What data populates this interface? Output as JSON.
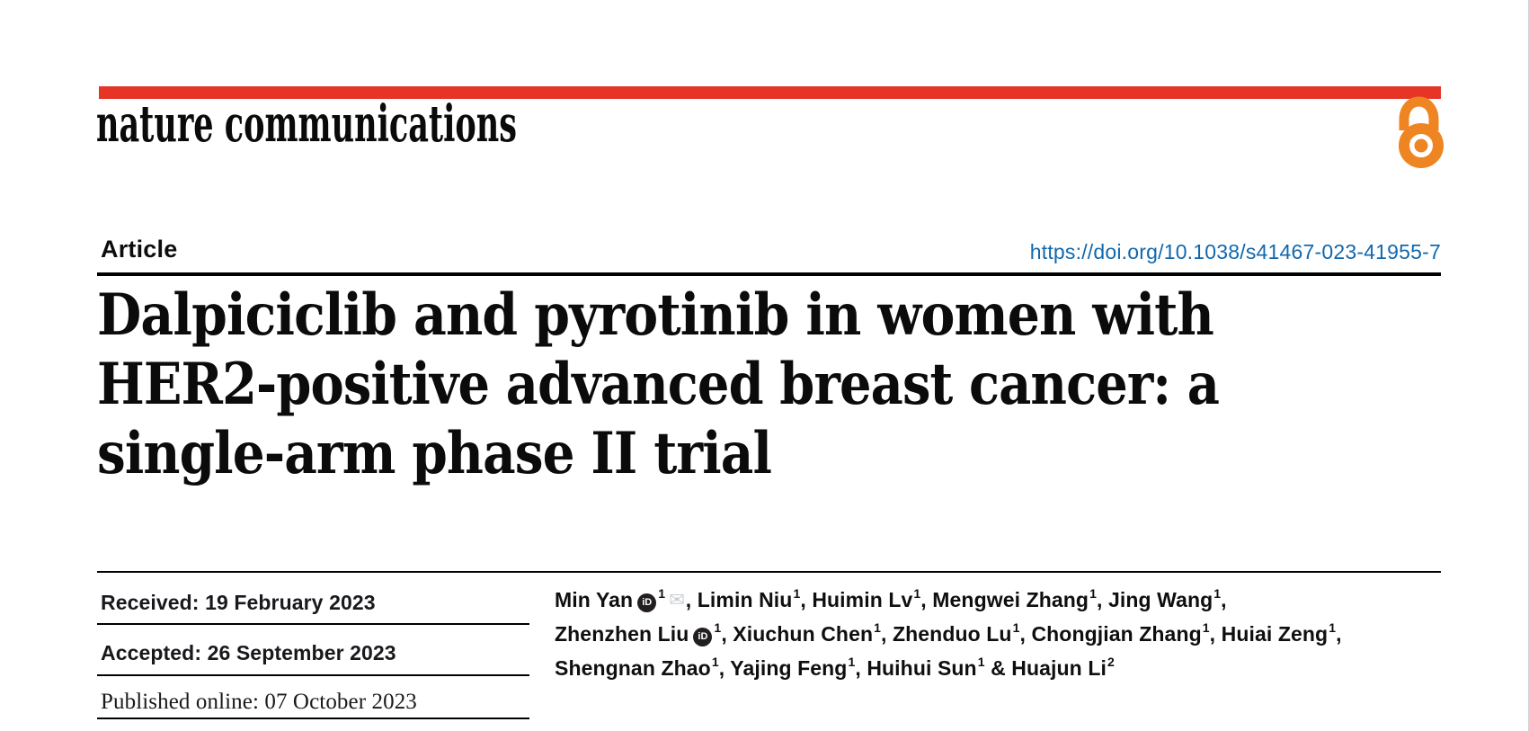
{
  "header": {
    "journal": "nature communications",
    "article_label": "Article",
    "doi_url": "https://doi.org/10.1038/s41467-023-41955-7"
  },
  "title": {
    "lines": [
      "Dalpiciclib and pyrotinib in women with",
      "HER2-positive advanced breast cancer: a",
      "single-arm phase II trial"
    ]
  },
  "history": {
    "received": {
      "label": "Received:",
      "date": "19 February 2023"
    },
    "accepted": {
      "label": "Accepted:",
      "date": "26 September 2023"
    },
    "published": {
      "label": "Published online:",
      "date": "07 October 2023"
    }
  },
  "authors": {
    "lines": [
      [
        {
          "name": "Min Yan",
          "orcid": true,
          "sup": "1",
          "envelope": true,
          "suffix": ", "
        },
        {
          "name": "Limin Niu",
          "sup": "1",
          "suffix": ", "
        },
        {
          "name": "Huimin Lv",
          "sup": "1",
          "suffix": ", "
        },
        {
          "name": "Mengwei Zhang",
          "sup": "1",
          "suffix": ", "
        },
        {
          "name": "Jing Wang",
          "sup": "1",
          "suffix": ","
        }
      ],
      [
        {
          "name": "Zhenzhen Liu",
          "orcid": true,
          "sup": "1",
          "suffix": ", "
        },
        {
          "name": "Xiuchun Chen",
          "sup": "1",
          "suffix": ", "
        },
        {
          "name": "Zhenduo Lu",
          "sup": "1",
          "suffix": ", "
        },
        {
          "name": "Chongjian Zhang",
          "sup": "1",
          "suffix": ", "
        },
        {
          "name": "Huiai Zeng",
          "sup": "1",
          "suffix": ","
        }
      ],
      [
        {
          "name": "Shengnan Zhao",
          "sup": "1",
          "suffix": ", "
        },
        {
          "name": "Yajing Feng",
          "sup": "1",
          "suffix": ", "
        },
        {
          "name": "Huihui Sun",
          "sup": "1",
          "suffix": " & "
        },
        {
          "name": "Huajun Li",
          "sup": "2",
          "suffix": ""
        }
      ]
    ]
  },
  "icons": {
    "orcid_glyph": "iD",
    "email_glyph": "✉",
    "open_access": "open-lock"
  },
  "colors": {
    "brand_red": "#e63426",
    "open_access_orange": "#ee8522",
    "link_blue": "#1268ad"
  }
}
